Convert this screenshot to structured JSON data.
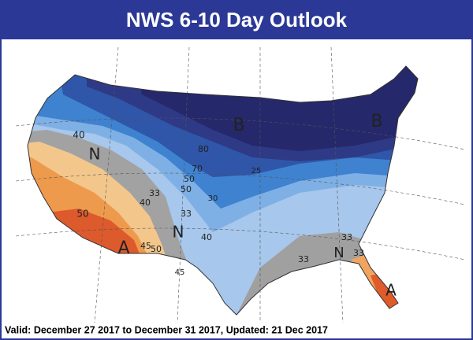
{
  "header": {
    "title": "NWS 6-10 Day Outlook"
  },
  "map": {
    "labels": [
      "B",
      "B",
      "N",
      "N",
      "N",
      "A",
      "A",
      "40",
      "80",
      "70",
      "25",
      "50",
      "50",
      "30",
      "33",
      "40",
      "33",
      "40",
      "50",
      "45",
      "50",
      "45",
      "33",
      "33",
      "33"
    ]
  },
  "footer": {
    "text": "Valid: December 27 2017 to December 31 2017, Updated: 21 Dec 2017"
  }
}
